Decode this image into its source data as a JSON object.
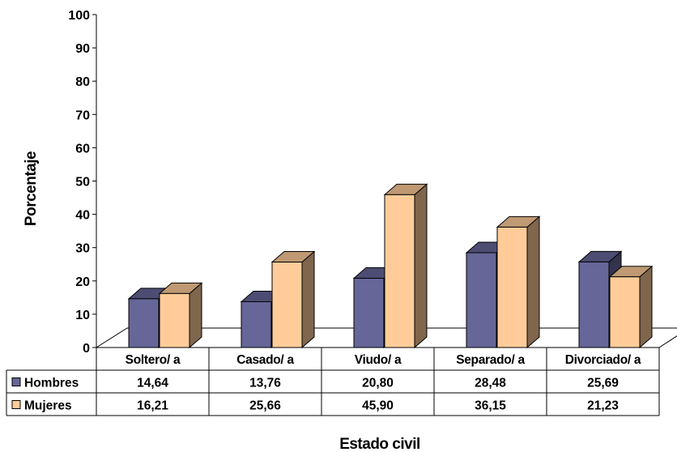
{
  "chart_data": {
    "type": "bar",
    "title": "",
    "xlabel": "Estado civil",
    "ylabel": "Porcentaje",
    "ylim": [
      0,
      100
    ],
    "yticks": [
      "0",
      "10",
      "20",
      "30",
      "40",
      "50",
      "60",
      "70",
      "80",
      "90",
      "100"
    ],
    "categories": [
      "Soltero/ a",
      "Casado/ a",
      "Viudo/ a",
      "Separado/ a",
      "Divorciado/ a"
    ],
    "series": [
      {
        "name": "Hombres",
        "values": [
          14.64,
          13.76,
          20.8,
          28.48,
          25.69
        ],
        "labels": [
          "14,64",
          "13,76",
          "20,80",
          "28,48",
          "25,69"
        ],
        "color": "#666699"
      },
      {
        "name": "Mujeres",
        "values": [
          16.21,
          25.66,
          45.9,
          36.15,
          21.23
        ],
        "labels": [
          "16,21",
          "25,66",
          "45,90",
          "36,15",
          "21,23"
        ],
        "color": "#ffcc99"
      }
    ],
    "grid": false,
    "data_table": true,
    "legend": "in data table"
  }
}
